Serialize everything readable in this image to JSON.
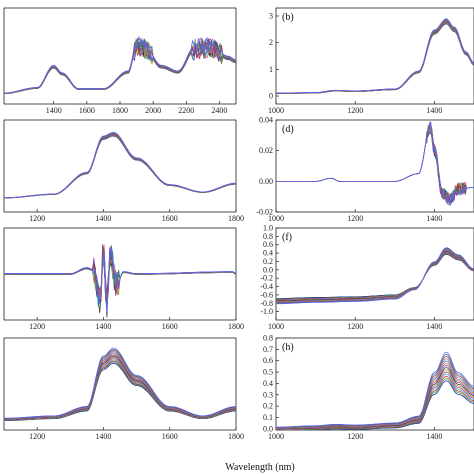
{
  "figure": {
    "xlabel": "Wavelength (nm)"
  },
  "chart_data": [
    {
      "id": "a",
      "label": "",
      "type": "line",
      "xlim": [
        1100,
        2500
      ],
      "ylim": [
        -0.3,
        2.4
      ],
      "xticks": [
        1400,
        1600,
        1800,
        2000,
        2200,
        2400
      ],
      "yticks": [],
      "shape": "raw_full",
      "spread": 0.04,
      "noise": true,
      "x": [
        1100,
        1300,
        1400,
        1450,
        1550,
        1700,
        1850,
        1900,
        1950,
        2050,
        2150,
        2250,
        2350,
        2450,
        2500
      ],
      "y": [
        0.0,
        0.15,
        0.75,
        0.55,
        0.12,
        0.12,
        0.6,
        1.35,
        1.25,
        0.75,
        0.6,
        1.25,
        1.3,
        1.0,
        0.9
      ]
    },
    {
      "id": "b",
      "label": "(b)",
      "type": "line",
      "xlim": [
        1000,
        1500
      ],
      "ylim": [
        -0.3,
        3.3
      ],
      "xticks": [
        1000,
        1200,
        1400
      ],
      "yticks": [
        0,
        1,
        2,
        3
      ],
      "shape": "raw",
      "spread": 0.03,
      "noise": false,
      "x": [
        1000,
        1100,
        1150,
        1200,
        1300,
        1360,
        1400,
        1430,
        1450,
        1480,
        1500
      ],
      "y": [
        0.1,
        0.12,
        0.2,
        0.18,
        0.25,
        0.9,
        2.4,
        2.8,
        2.5,
        1.6,
        1.2
      ]
    },
    {
      "id": "c",
      "label": "",
      "type": "line",
      "xlim": [
        1100,
        1800
      ],
      "ylim": [
        -0.2,
        1.1
      ],
      "xticks": [
        1200,
        1400,
        1600,
        1800
      ],
      "yticks": [],
      "shape": "snv",
      "spread": 0.025,
      "noise": false,
      "x": [
        1100,
        1250,
        1350,
        1400,
        1430,
        1500,
        1600,
        1700,
        1800
      ],
      "y": [
        0.0,
        0.05,
        0.35,
        0.85,
        0.9,
        0.55,
        0.18,
        0.08,
        0.2
      ]
    },
    {
      "id": "d",
      "label": "(d)",
      "type": "line",
      "xlim": [
        1000,
        1500
      ],
      "ylim": [
        -0.02,
        0.04
      ],
      "xticks": [
        1000,
        1200,
        1400
      ],
      "yticks": [
        -0.02,
        0.0,
        0.02,
        0.04
      ],
      "shape": "deriv1",
      "spread": 0.003,
      "noise": true,
      "x": [
        1000,
        1100,
        1140,
        1160,
        1300,
        1360,
        1390,
        1400,
        1420,
        1440,
        1460,
        1500
      ],
      "y": [
        0.0,
        0.0,
        0.002,
        0.0,
        0.0,
        0.005,
        0.035,
        0.02,
        -0.008,
        -0.012,
        -0.005,
        -0.004
      ]
    },
    {
      "id": "e",
      "label": "",
      "type": "line",
      "xlim": [
        1100,
        1800
      ],
      "ylim": [
        -1.2,
        1.2
      ],
      "xticks": [
        1200,
        1400,
        1600,
        1800
      ],
      "yticks": [],
      "shape": "deriv2",
      "spread": 0.05,
      "noise": true,
      "x": [
        1100,
        1300,
        1350,
        1370,
        1390,
        1400,
        1410,
        1420,
        1440,
        1460,
        1500,
        1790,
        1800
      ],
      "y": [
        0.0,
        0.0,
        0.15,
        0.1,
        -0.7,
        0.6,
        -0.9,
        0.5,
        -0.3,
        0.05,
        0.0,
        0.05,
        0.0
      ]
    },
    {
      "id": "f",
      "label": "(f)",
      "type": "line",
      "xlim": [
        1000,
        1500
      ],
      "ylim": [
        -1.2,
        1.0
      ],
      "xticks": [
        1000,
        1200,
        1400
      ],
      "yticks": [
        -1.0,
        -0.8,
        -0.6,
        -0.4,
        -0.2,
        0.0,
        0.2,
        0.4,
        0.6,
        0.8,
        1.0
      ],
      "shape": "msc",
      "spread": 0.12,
      "noise": false,
      "x": [
        1000,
        1100,
        1200,
        1300,
        1350,
        1400,
        1430,
        1460,
        1500
      ],
      "y": [
        -0.75,
        -0.72,
        -0.7,
        -0.65,
        -0.45,
        0.15,
        0.45,
        0.3,
        0.0
      ]
    },
    {
      "id": "g",
      "label": "",
      "type": "line",
      "xlim": [
        1100,
        1800
      ],
      "ylim": [
        -0.1,
        1.2
      ],
      "xticks": [
        1200,
        1400,
        1600,
        1800
      ],
      "yticks": [],
      "shape": "norm",
      "spread": 0.1,
      "noise": false,
      "x": [
        1100,
        1250,
        1350,
        1400,
        1430,
        1500,
        1600,
        1700,
        1800
      ],
      "y": [
        0.05,
        0.08,
        0.2,
        0.85,
        0.95,
        0.6,
        0.2,
        0.08,
        0.2
      ]
    },
    {
      "id": "h",
      "label": "(h)",
      "type": "line",
      "xlim": [
        1000,
        1500
      ],
      "ylim": [
        -0.01,
        0.8
      ],
      "xticks": [
        1000,
        1200,
        1400
      ],
      "yticks": [
        0.0,
        0.1,
        0.2,
        0.3,
        0.4,
        0.5,
        0.6,
        0.7,
        0.8
      ],
      "shape": "base",
      "spread": 0.2,
      "noise": false,
      "x": [
        1000,
        1100,
        1150,
        1200,
        1300,
        1360,
        1400,
        1430,
        1460,
        1500
      ],
      "y": [
        0.0,
        0.01,
        0.02,
        0.015,
        0.03,
        0.08,
        0.4,
        0.55,
        0.4,
        0.3
      ]
    }
  ]
}
